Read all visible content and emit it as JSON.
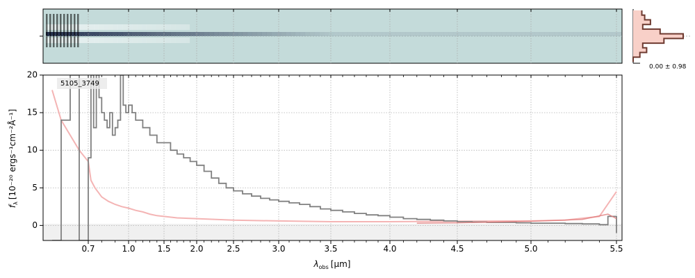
{
  "chart_data": {
    "type": "line",
    "object_label": "5105_3749",
    "xlabel_main": "λ",
    "xlabel_sub": "obs",
    "xlabel_unit": "[μm]",
    "ylabel_main": "f",
    "ylabel_sub": "λ",
    "ylabel_unit": "[10⁻²⁰ ergs⁻¹cm⁻²Å⁻¹]",
    "profile_label": "0.00 ± 0.98",
    "x_scale": "nonlinear (spectral resolution element spacing)",
    "xlim": [
      0.6,
      5.52
    ],
    "ylim": [
      -2,
      20
    ],
    "x_ticks": [
      {
        "value": 0.7,
        "label": "0.7"
      },
      {
        "value": 1.0,
        "label": "1.0"
      },
      {
        "value": 1.5,
        "label": "1.5"
      },
      {
        "value": 2.0,
        "label": "2.0"
      },
      {
        "value": 2.5,
        "label": "2.5"
      },
      {
        "value": 3.0,
        "label": "3.0"
      },
      {
        "value": 3.5,
        "label": "3.5"
      },
      {
        "value": 4.0,
        "label": "4.0"
      },
      {
        "value": 4.5,
        "label": "4.5"
      },
      {
        "value": 5.0,
        "label": "5.0"
      },
      {
        "value": 5.5,
        "label": "5.5"
      }
    ],
    "y_ticks": [
      {
        "value": 0,
        "label": "0"
      },
      {
        "value": 5,
        "label": "5"
      },
      {
        "value": 10,
        "label": "10"
      },
      {
        "value": 15,
        "label": "15"
      },
      {
        "value": 20,
        "label": "20"
      }
    ],
    "grid": true,
    "colors": {
      "flux": "#808080",
      "error": "#f4b4b4",
      "model": "#e07a7a",
      "spectrum_bg": "#c4dbda",
      "trace_dark": "#1e2a4a",
      "profile_fill": "#f8d0c8",
      "profile_line": "#6e3a30"
    },
    "series": [
      {
        "role": "flux",
        "x": [
          0.62,
          0.64,
          0.66,
          0.68,
          0.7,
          0.72,
          0.74,
          0.76,
          0.78,
          0.8,
          0.82,
          0.84,
          0.86,
          0.88,
          0.9,
          0.92,
          0.94,
          0.96,
          0.98,
          1.0,
          1.05,
          1.1,
          1.15,
          1.2,
          1.25,
          1.3,
          1.35,
          1.4,
          1.45,
          1.5,
          1.6,
          1.7,
          1.8,
          1.9,
          2.0,
          2.1,
          2.2,
          2.3,
          2.4,
          2.5,
          2.6,
          2.7,
          2.8,
          2.9,
          3.0,
          3.1,
          3.2,
          3.3,
          3.4,
          3.5,
          3.6,
          3.7,
          3.8,
          3.9,
          4.0,
          4.1,
          4.2,
          4.3,
          4.4,
          4.5,
          4.6,
          4.7,
          4.8,
          4.9,
          5.0,
          5.1,
          5.2,
          5.3,
          5.4,
          5.45,
          5.5
        ],
        "y": [
          -2,
          14,
          20,
          -2,
          9,
          20,
          13,
          20,
          17,
          15,
          14,
          13,
          15,
          12,
          13,
          14,
          20,
          16,
          15,
          16,
          15,
          14,
          14,
          13,
          13,
          12,
          12,
          11,
          11,
          11,
          10,
          9.5,
          9,
          8.5,
          8,
          7.2,
          6.3,
          5.6,
          5.0,
          4.6,
          4.2,
          3.9,
          3.6,
          3.4,
          3.2,
          3.0,
          2.8,
          2.5,
          2.2,
          2.0,
          1.8,
          1.6,
          1.4,
          1.3,
          1.1,
          0.9,
          0.8,
          0.7,
          0.6,
          0.5,
          0.45,
          0.4,
          0.4,
          0.35,
          0.3,
          0.3,
          0.25,
          0.2,
          0.1,
          1.2,
          -1
        ]
      },
      {
        "role": "error",
        "x": [
          0.62,
          0.64,
          0.66,
          0.68,
          0.7,
          0.72,
          0.75,
          0.8,
          0.85,
          0.9,
          0.95,
          1.0,
          1.1,
          1.2,
          1.3,
          1.4,
          1.5,
          1.7,
          2.0,
          2.5,
          3.0,
          3.5,
          4.0,
          4.5,
          5.0,
          5.2,
          5.4,
          5.5
        ],
        "y": [
          18,
          14,
          12,
          10,
          8.5,
          6,
          5,
          3.8,
          3.2,
          2.8,
          2.5,
          2.3,
          2.0,
          1.8,
          1.5,
          1.3,
          1.2,
          1.0,
          0.9,
          0.7,
          0.6,
          0.5,
          0.5,
          0.55,
          0.6,
          0.7,
          1.2,
          4.5
        ]
      },
      {
        "role": "model",
        "x": [
          4.2,
          4.5,
          5.0,
          5.3,
          5.45,
          5.5
        ],
        "y": [
          0.3,
          0.35,
          0.55,
          0.8,
          1.5,
          0.9
        ]
      }
    ],
    "profile": {
      "bins": [
        -1,
        -0.8,
        -0.6,
        -0.4,
        -0.2,
        0,
        0.2,
        0.4,
        0.6,
        0.8,
        1
      ],
      "values": [
        0.45,
        0.6,
        0.9,
        0.5,
        1.4,
        2.6,
        1.6,
        0.5,
        0.7,
        0.35,
        0.0
      ]
    }
  }
}
